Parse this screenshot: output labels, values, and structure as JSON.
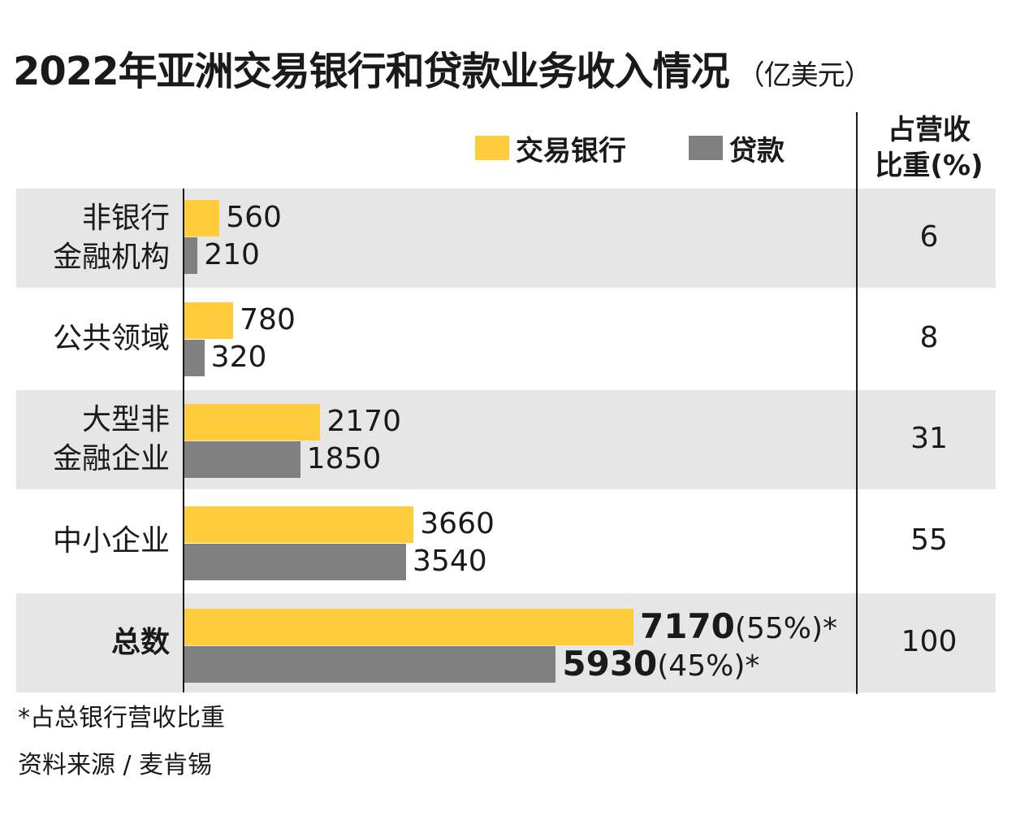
{
  "title": "2022年亚洲交易银行和贷款业务收入情况",
  "unit": "（亿美元）",
  "legend": {
    "trade_label": "交易银行",
    "loan_label": "贷款"
  },
  "share_header": {
    "line1": "占营收",
    "line2": "比重(%)"
  },
  "footnote": "*占总银行营收比重",
  "source": "资料来源 / 麦肯锡",
  "colors": {
    "trade": "#ffcd3c",
    "loan": "#808080",
    "band": "#e6e6e6"
  },
  "chart_data": {
    "type": "bar",
    "orientation": "horizontal",
    "title": "2022年亚洲交易银行和贷款业务收入情况",
    "categories": [
      [
        "非银行",
        "金融机构"
      ],
      [
        "公共领域"
      ],
      [
        "大型非",
        "金融企业"
      ],
      [
        "中小企业"
      ],
      [
        "总数"
      ]
    ],
    "series": [
      {
        "name": "交易银行",
        "values": [
          560,
          780,
          2170,
          3660,
          7170
        ]
      },
      {
        "name": "贷款",
        "values": [
          210,
          320,
          1850,
          3540,
          5930
        ]
      }
    ],
    "total_suffix": {
      "trade": "(55%)*",
      "loan": "(45%)*"
    },
    "share_pct": [
      "6",
      "8",
      "31",
      "55",
      "100"
    ],
    "xlim": [
      0,
      9000
    ]
  }
}
